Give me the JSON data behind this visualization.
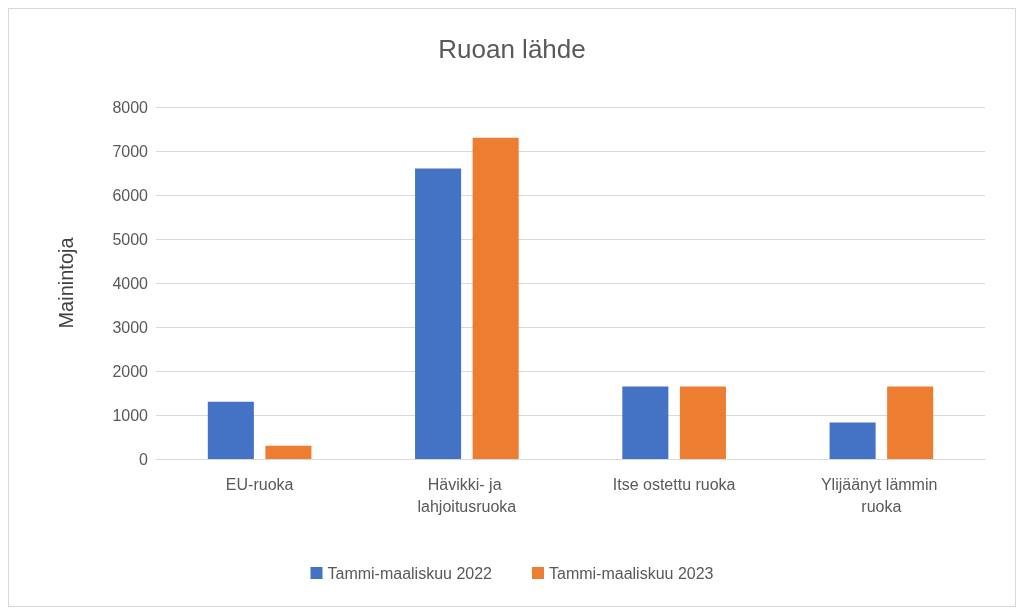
{
  "chart_data": {
    "type": "bar",
    "title": "Ruoan lähde",
    "ylabel": "Mainintoja",
    "categories": [
      "EU-ruoka",
      "Hävikki- ja lahjoitusruoka",
      "Itse ostettu ruoka",
      "Ylijäänyt lämmin ruoka"
    ],
    "series": [
      {
        "name": "Tammi-maaliskuu 2022",
        "color": "#4472c4",
        "values": [
          1300,
          6600,
          1650,
          830
        ]
      },
      {
        "name": "Tammi-maaliskuu 2023",
        "color": "#ed7d31",
        "values": [
          300,
          7300,
          1650,
          1650
        ]
      }
    ],
    "ylim": [
      0,
      8000
    ],
    "yticks": [
      0,
      1000,
      2000,
      3000,
      4000,
      5000,
      6000,
      7000,
      8000
    ],
    "grid": "y",
    "legend": "bottom"
  }
}
